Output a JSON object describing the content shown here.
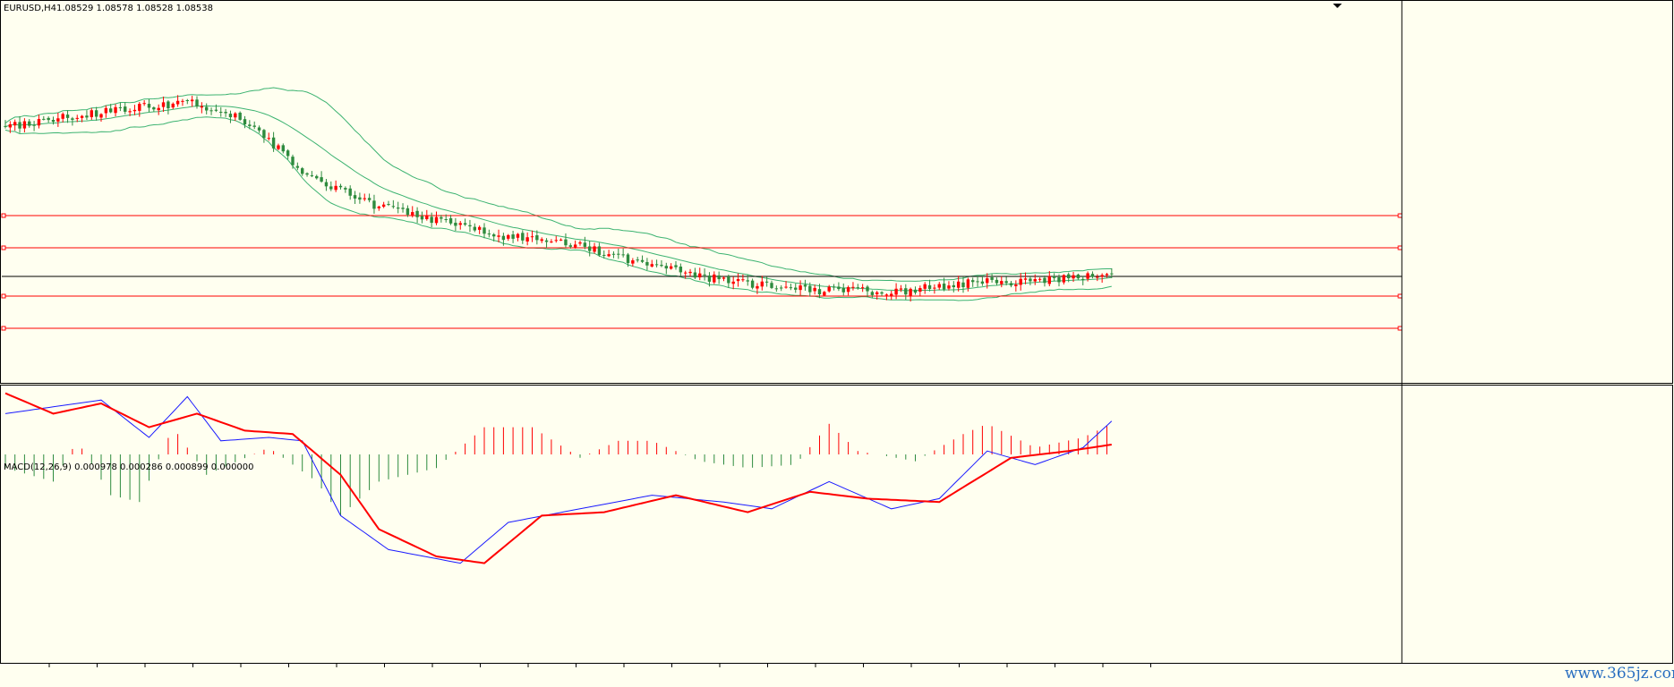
{
  "header": {
    "symbol_label": "EURUSD,H4",
    "ohlc_values": "1.08529 1.08578 1.08528 1.08538"
  },
  "macd_panel": {
    "indicator_label": "MACD(12,26,9) 0.000978 0.000286 0.000899 0.000000"
  },
  "watermark": {
    "text": "www.365jz.com"
  },
  "colors": {
    "background": "#fffff0",
    "bull_candle": "#ff0000",
    "bear_candle": "#2e8b3e",
    "bollinger": "#3cb371",
    "macd_line": "#1a1aff",
    "signal_line": "#ff0000",
    "hist_positive": "#ff0000",
    "hist_negative": "#2e8b3e",
    "level_lines": "#ff0000",
    "current_price_line": "#000000"
  },
  "chart_data": [
    {
      "type": "candlestick",
      "symbol": "EURUSD",
      "timeframe": "H4",
      "indicators": [
        "Bollinger Bands"
      ],
      "last_bar": {
        "open": 1.08529,
        "high": 1.08578,
        "low": 1.08528,
        "close": 1.08538
      },
      "horizontal_levels": {
        "count": 4
      },
      "current_price": 1.08538,
      "close_trend_keypoints": [
        [
          0,
          0.78
        ],
        [
          15,
          0.82
        ],
        [
          30,
          0.85
        ],
        [
          40,
          0.86
        ],
        [
          50,
          0.8
        ],
        [
          62,
          0.63
        ],
        [
          75,
          0.52
        ],
        [
          90,
          0.46
        ],
        [
          105,
          0.4
        ],
        [
          120,
          0.37
        ],
        [
          135,
          0.3
        ],
        [
          150,
          0.25
        ],
        [
          165,
          0.22
        ],
        [
          185,
          0.21
        ],
        [
          200,
          0.24
        ],
        [
          215,
          0.25
        ],
        [
          230,
          0.27
        ]
      ],
      "grid": false
    },
    {
      "type": "line+histogram",
      "title": "MACD(12,26,9)",
      "values": {
        "main": 0.000978,
        "signal": 0.000286,
        "histogram": 0.000899,
        "zero": 0.0
      },
      "series": [
        {
          "values_keypoints": [
            [
              0,
              0.0012
            ],
            [
              10,
              0.0014
            ],
            [
              20,
              0.0016
            ],
            [
              30,
              0.0005
            ],
            [
              38,
              0.0017
            ],
            [
              45,
              0.0004
            ],
            [
              55,
              0.0005
            ],
            [
              62,
              0.0004
            ],
            [
              70,
              -0.0018
            ],
            [
              80,
              -0.0028
            ],
            [
              95,
              -0.0032
            ],
            [
              105,
              -0.002
            ],
            [
              120,
              -0.0016
            ],
            [
              135,
              -0.0012
            ],
            [
              150,
              -0.0014
            ],
            [
              160,
              -0.0016
            ],
            [
              172,
              -0.0008
            ],
            [
              185,
              -0.0016
            ],
            [
              195,
              -0.0013
            ],
            [
              205,
              0.0001
            ],
            [
              215,
              -0.0003
            ],
            [
              225,
              0.0002
            ],
            [
              231,
              0.00098
            ]
          ]
        },
        {
          "values_keypoints": [
            [
              0,
              0.0018
            ],
            [
              10,
              0.0012
            ],
            [
              20,
              0.0015
            ],
            [
              30,
              0.0008
            ],
            [
              40,
              0.0012
            ],
            [
              50,
              0.0007
            ],
            [
              60,
              0.0006
            ],
            [
              70,
              -0.0006
            ],
            [
              78,
              -0.0022
            ],
            [
              90,
              -0.003
            ],
            [
              100,
              -0.0032
            ],
            [
              112,
              -0.0018
            ],
            [
              125,
              -0.0017
            ],
            [
              140,
              -0.0012
            ],
            [
              155,
              -0.0017
            ],
            [
              168,
              -0.0011
            ],
            [
              180,
              -0.0013
            ],
            [
              195,
              -0.0014
            ],
            [
              210,
              -0.0001
            ],
            [
              222,
              0.0001
            ],
            [
              231,
              0.00029
            ]
          ]
        }
      ],
      "histogram": {
        "values_keypoints": [
          [
            0,
            -0.0004
          ],
          [
            10,
            -0.0008
          ],
          [
            15,
            0.0004
          ],
          [
            22,
            -0.0012
          ],
          [
            28,
            -0.0014
          ],
          [
            35,
            0.0008
          ],
          [
            42,
            -0.0006
          ],
          [
            55,
            0.0002
          ],
          [
            65,
            -0.0008
          ],
          [
            70,
            -0.0018
          ],
          [
            78,
            -0.0008
          ],
          [
            90,
            -0.0004
          ],
          [
            100,
            0.0008
          ],
          [
            110,
            0.0008
          ],
          [
            120,
            -0.0001
          ],
          [
            128,
            0.0004
          ],
          [
            135,
            0.0004
          ],
          [
            145,
            -0.0002
          ],
          [
            155,
            -0.0004
          ],
          [
            165,
            -0.0003
          ],
          [
            172,
            0.0009
          ],
          [
            178,
            0.0001
          ],
          [
            190,
            -0.0002
          ],
          [
            200,
            0.0006
          ],
          [
            205,
            0.0009
          ],
          [
            215,
            0.0002
          ],
          [
            225,
            0.0005
          ],
          [
            231,
            0.0009
          ]
        ]
      },
      "grid": false
    }
  ]
}
